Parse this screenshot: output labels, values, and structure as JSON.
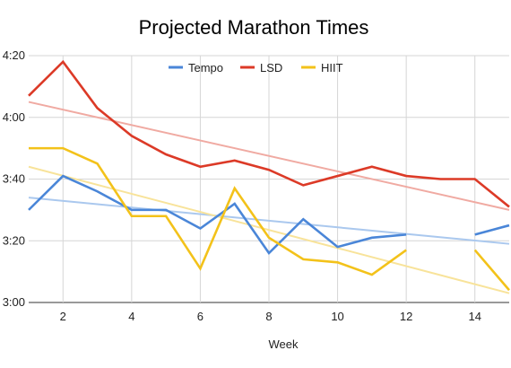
{
  "chart_data": {
    "type": "line",
    "title": "Projected Marathon Times",
    "xlabel": "Week",
    "ylabel": "",
    "xlim": [
      1,
      15
    ],
    "ylim": [
      180,
      260
    ],
    "x_ticks": [
      2,
      4,
      6,
      8,
      10,
      12,
      14
    ],
    "y_ticks": [
      {
        "value": 180,
        "label": "3:00"
      },
      {
        "value": 200,
        "label": "3:20"
      },
      {
        "value": 220,
        "label": "3:40"
      },
      {
        "value": 240,
        "label": "4:00"
      },
      {
        "value": 260,
        "label": "4:20"
      }
    ],
    "grid": true,
    "legend_position": "top",
    "x": [
      1,
      2,
      3,
      4,
      5,
      6,
      7,
      8,
      9,
      10,
      11,
      12,
      13,
      14,
      15
    ],
    "series": [
      {
        "name": "Tempo",
        "color": "#4a86d8",
        "trend_color": "#aac8ee",
        "values": [
          210,
          221,
          216,
          210,
          210,
          204,
          212,
          196,
          207,
          198,
          201,
          202,
          null,
          202,
          205
        ],
        "trendline": [
          214,
          199
        ]
      },
      {
        "name": "LSD",
        "color": "#dc3a27",
        "trend_color": "#f0aaa2",
        "values": [
          247,
          258,
          243,
          234,
          228,
          224,
          226,
          223,
          218,
          221,
          224,
          221,
          220,
          220,
          211
        ],
        "trendline": [
          245,
          210
        ]
      },
      {
        "name": "HIIT",
        "color": "#f3c21a",
        "trend_color": "#f8e39a",
        "values": [
          230,
          230,
          225,
          208,
          208,
          191,
          217,
          201,
          194,
          193,
          189,
          197,
          null,
          197,
          184
        ],
        "trendline": [
          224,
          183
        ]
      }
    ]
  }
}
